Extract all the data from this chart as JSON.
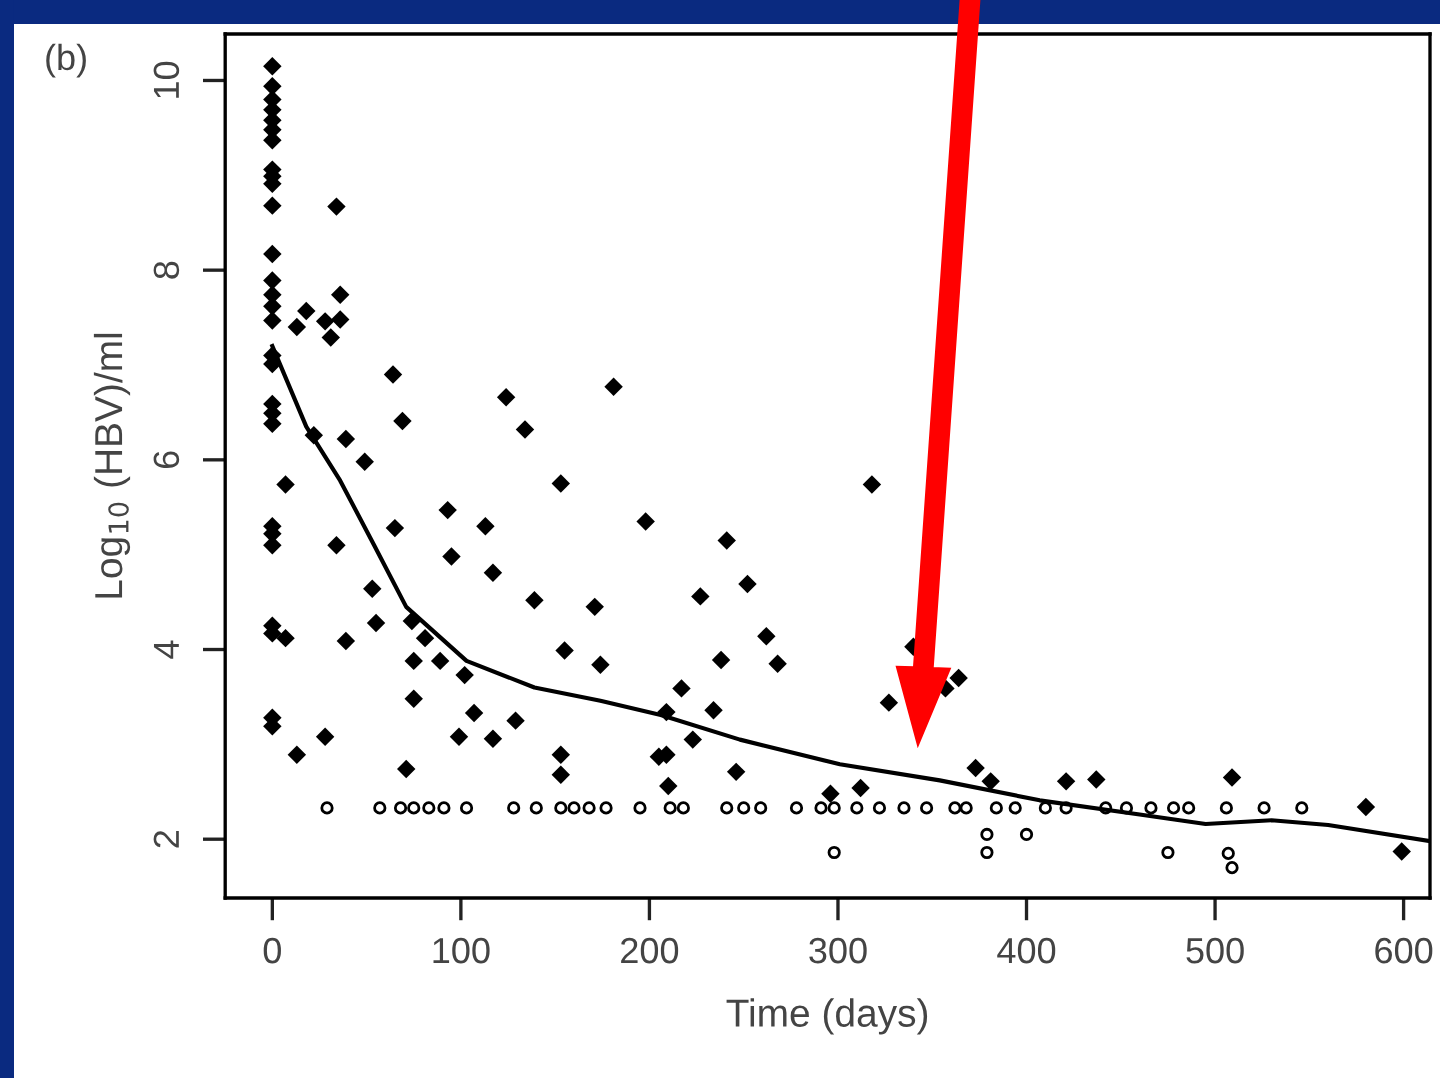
{
  "chart_data": {
    "type": "scatter",
    "xlabel": "Time (days)",
    "ylabel": "Log$_{10}$ (HBV)/ml",
    "annotations": [
      "(b)"
    ],
    "xlim": [
      -25,
      614
    ],
    "ylim": [
      1.38,
      10.49
    ],
    "xticks": [
      0,
      100,
      200,
      300,
      400,
      500,
      600
    ],
    "yticks": [
      2,
      4,
      6,
      8,
      10
    ],
    "grid": false,
    "series": [
      {
        "marker": "diamond",
        "color": "#000000",
        "x": [
          0,
          0,
          0,
          0,
          0,
          0,
          0,
          0,
          0,
          0,
          0,
          0,
          0,
          0,
          0,
          0,
          0,
          0,
          0,
          0,
          0,
          0,
          0,
          0,
          0,
          0,
          0,
          0,
          34,
          36,
          18,
          13,
          28,
          31,
          36,
          64,
          69,
          124,
          134,
          181,
          7,
          22,
          39,
          49,
          153,
          198,
          65,
          93,
          113,
          95,
          117,
          34,
          139,
          171,
          53,
          55,
          74,
          7,
          39,
          81,
          155,
          174,
          75,
          89,
          102,
          75,
          107,
          129,
          99,
          117,
          28,
          13,
          71,
          153,
          153,
          205,
          241,
          227,
          252,
          262,
          268,
          238,
          217,
          209,
          234,
          223,
          209,
          246,
          210,
          318,
          340,
          327,
          357,
          364,
          373,
          381,
          296,
          312,
          421,
          437,
          509,
          580,
          599
        ],
        "values": [
          10.15,
          9.94,
          9.8,
          9.69,
          9.58,
          9.48,
          9.37,
          9.06,
          8.99,
          8.91,
          8.68,
          8.17,
          7.89,
          7.74,
          7.62,
          7.47,
          7.1,
          7.01,
          6.59,
          6.49,
          6.38,
          5.3,
          5.22,
          5.1,
          4.25,
          4.17,
          3.28,
          3.19,
          8.67,
          7.74,
          7.57,
          7.4,
          7.46,
          7.29,
          7.48,
          6.9,
          6.41,
          6.66,
          6.32,
          6.77,
          5.74,
          6.26,
          6.22,
          5.98,
          5.75,
          5.35,
          5.28,
          5.47,
          5.3,
          4.98,
          4.81,
          5.1,
          4.52,
          4.45,
          4.64,
          4.28,
          4.3,
          4.12,
          4.09,
          4.12,
          3.99,
          3.84,
          3.88,
          3.88,
          3.73,
          3.48,
          3.33,
          3.25,
          3.08,
          3.06,
          3.08,
          2.89,
          2.74,
          2.89,
          2.68,
          2.87,
          5.15,
          4.56,
          4.69,
          4.14,
          3.85,
          3.89,
          3.59,
          3.34,
          3.36,
          3.05,
          2.89,
          2.71,
          2.56,
          5.74,
          4.03,
          3.44,
          3.59,
          3.7,
          2.75,
          2.61,
          2.48,
          2.54,
          2.61,
          2.63,
          2.65,
          2.34,
          1.87
        ]
      },
      {
        "marker": "circle",
        "color": "#000000",
        "x": [
          29,
          57,
          68,
          75,
          83,
          91,
          103,
          128,
          140,
          153,
          160,
          168,
          177,
          195,
          211,
          218,
          241,
          250,
          259,
          278,
          291,
          298,
          310,
          322,
          335,
          347,
          362,
          368,
          384,
          394,
          410,
          421,
          442,
          453,
          466,
          478,
          486,
          506,
          526,
          546,
          298,
          379,
          379,
          400,
          475,
          507,
          509
        ],
        "values": [
          2.33,
          2.33,
          2.33,
          2.33,
          2.33,
          2.33,
          2.33,
          2.33,
          2.33,
          2.33,
          2.33,
          2.33,
          2.33,
          2.33,
          2.33,
          2.33,
          2.33,
          2.33,
          2.33,
          2.33,
          2.33,
          2.33,
          2.33,
          2.33,
          2.33,
          2.33,
          2.33,
          2.33,
          2.33,
          2.33,
          2.33,
          2.33,
          2.33,
          2.33,
          2.33,
          2.33,
          2.33,
          2.33,
          2.33,
          2.33,
          1.86,
          2.05,
          1.86,
          2.05,
          1.86,
          1.85,
          1.7
        ]
      },
      {
        "type": "line",
        "marker": "none",
        "line_style": "solid",
        "color": "#000000",
        "x": [
          0,
          18,
          36,
          54,
          71,
          103,
          139,
          174,
          206,
          248,
          301,
          354,
          407,
          460,
          495,
          530,
          560,
          614
        ],
        "values": [
          7.2,
          6.35,
          5.78,
          5.1,
          4.45,
          3.88,
          3.6,
          3.46,
          3.31,
          3.05,
          2.79,
          2.62,
          2.41,
          2.26,
          2.16,
          2.2,
          2.15,
          1.98
        ]
      }
    ]
  }
}
